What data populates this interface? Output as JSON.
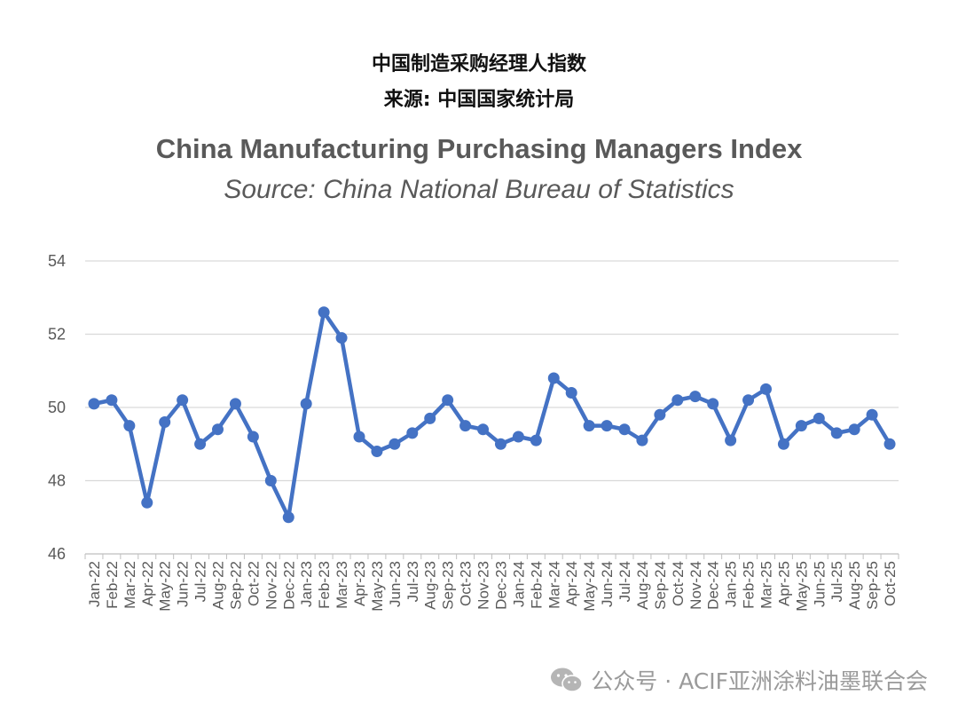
{
  "header": {
    "cn_title": "中国制造采购经理人指数",
    "cn_source": "来源: 中国国家统计局"
  },
  "watermark": {
    "text": "公众号 · ACIF亚洲涂料油墨联合会",
    "icon": "wechat-icon"
  },
  "chart_data": {
    "type": "line",
    "title": "China Manufacturing Purchasing Managers Index",
    "subtitle": "Source:  China National Bureau of Statistics",
    "xlabel": "",
    "ylabel": "",
    "ylim": [
      46,
      54
    ],
    "yticks": [
      46,
      48,
      50,
      52,
      54
    ],
    "grid": true,
    "legend": "none",
    "color": "#4472C4",
    "categories": [
      "Jan-22",
      "Feb-22",
      "Mar-22",
      "Apr-22",
      "May-22",
      "Jun-22",
      "Jul-22",
      "Aug-22",
      "Sep-22",
      "Oct-22",
      "Nov-22",
      "Dec-22",
      "Jan-23",
      "Feb-23",
      "Mar-23",
      "Apr-23",
      "May-23",
      "Jun-23",
      "Jul-23",
      "Aug-23",
      "Sep-23",
      "Oct-23",
      "Nov-23",
      "Dec-23",
      "Jan-24",
      "Feb-24",
      "Mar-24",
      "Apr-24",
      "May-24",
      "Jun-24",
      "Jul-24",
      "Aug-24",
      "Sep-24",
      "Oct-24",
      "Nov-24",
      "Dec-24",
      "Jan-25",
      "Feb-25",
      "Mar-25",
      "Apr-25",
      "May-25",
      "Jun-25",
      "Jul-25",
      "Aug-25",
      "Sep-25",
      "Oct-25"
    ],
    "values": [
      50.1,
      50.2,
      49.5,
      47.4,
      49.6,
      50.2,
      49.0,
      49.4,
      50.1,
      49.2,
      48.0,
      47.0,
      50.1,
      52.6,
      51.9,
      49.2,
      48.8,
      49.0,
      49.3,
      49.7,
      50.2,
      49.5,
      49.4,
      49.0,
      49.2,
      49.1,
      50.8,
      50.4,
      49.5,
      49.5,
      49.4,
      49.1,
      49.8,
      50.2,
      50.3,
      50.1,
      49.1,
      50.2,
      50.5,
      49.0,
      49.5,
      49.7,
      49.3,
      49.4,
      49.8,
      49.0
    ]
  }
}
